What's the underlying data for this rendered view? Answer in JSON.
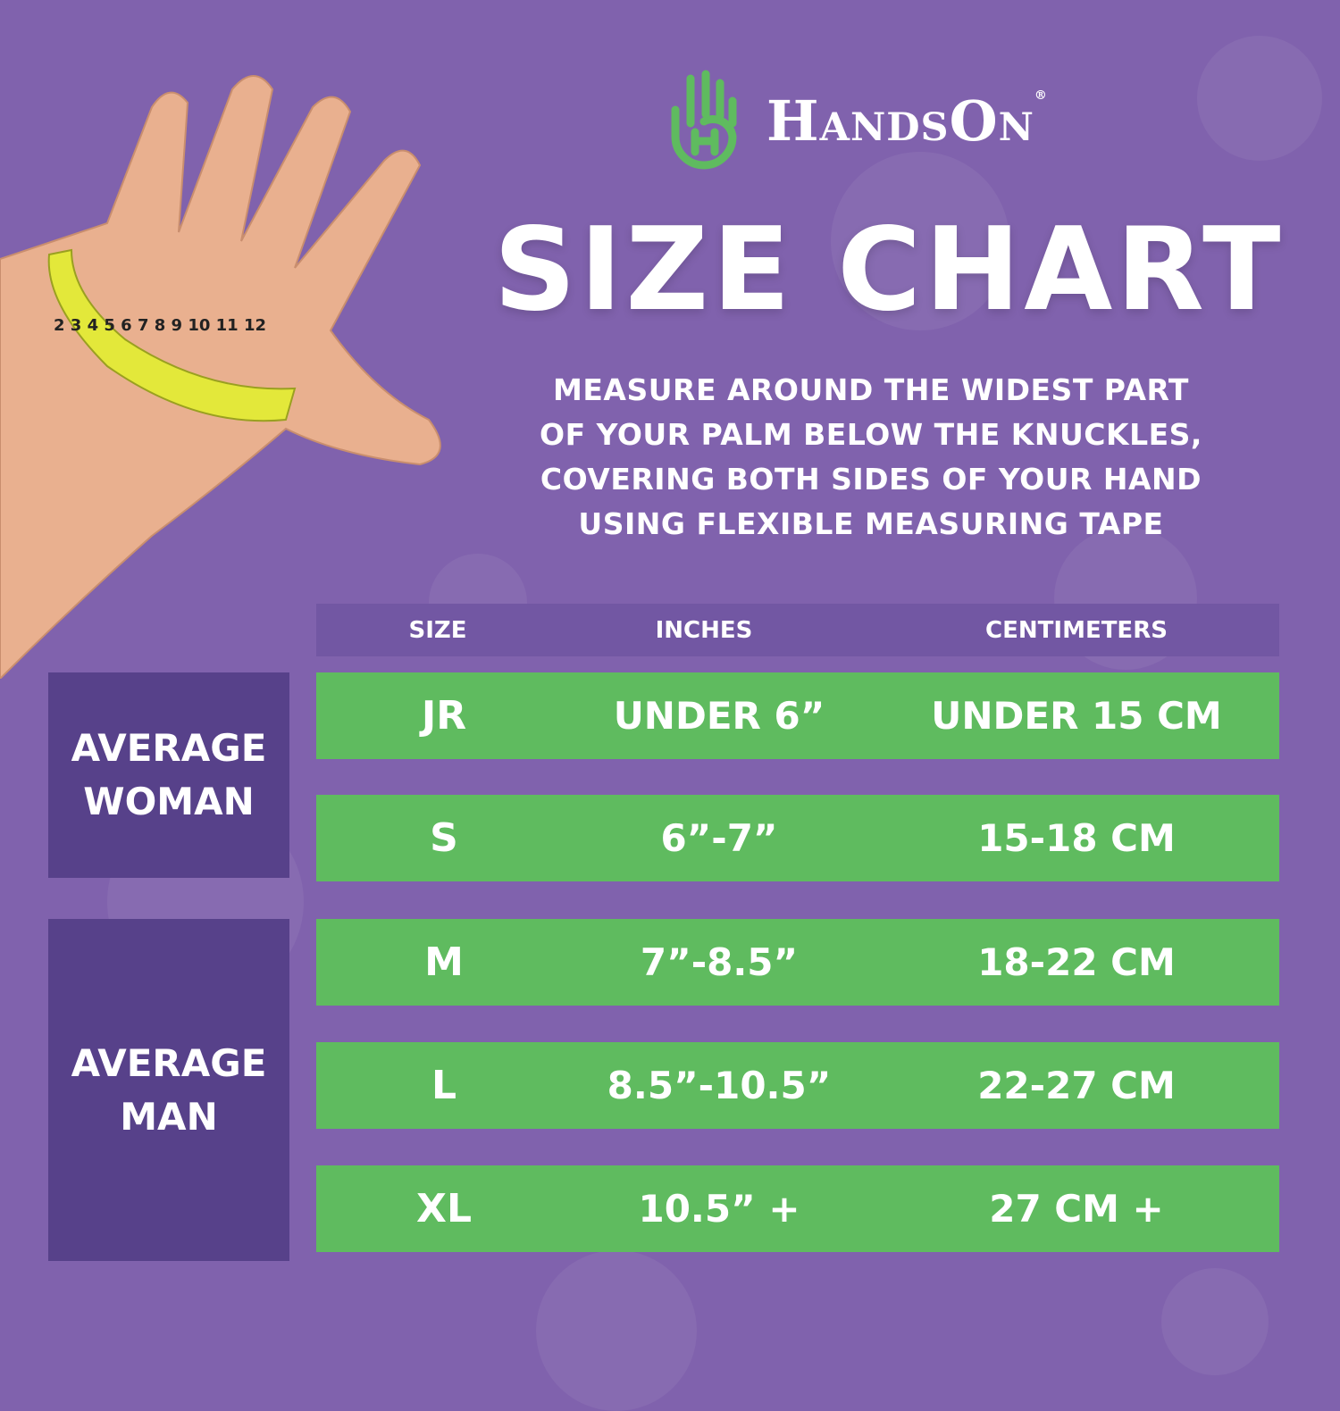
{
  "brand": {
    "name": "HandsOn",
    "registered": "®",
    "logo_color": "#5fbb5f"
  },
  "title": "SIZE CHART",
  "instructions": [
    "MEASURE AROUND THE WIDEST PART",
    "OF YOUR PALM BELOW THE KNUCKLES,",
    "COVERING BOTH SIDES OF YOUR HAND",
    "USING FLEXIBLE MEASURING TAPE"
  ],
  "table": {
    "headers": [
      "SIZE",
      "INCHES",
      "CENTIMETERS"
    ],
    "rows": [
      {
        "size": "JR",
        "inches": "UNDER 6”",
        "cm": "UNDER 15 CM"
      },
      {
        "size": "S",
        "inches": "6”-7”",
        "cm": "15-18 CM"
      },
      {
        "size": "M",
        "inches": "7”-8.5”",
        "cm": "18-22 CM"
      },
      {
        "size": "L",
        "inches": "8.5”-10.5”",
        "cm": "22-27 CM"
      },
      {
        "size": "XL",
        "inches": "10.5” +",
        "cm": "27 CM +"
      }
    ],
    "groups": [
      {
        "line1": "AVERAGE",
        "line2": "WOMAN"
      },
      {
        "line1": "AVERAGE",
        "line2": "MAN"
      }
    ]
  },
  "tape_numbers": [
    "2",
    "3",
    "4",
    "5",
    "6",
    "7",
    "8",
    "9",
    "10",
    "11",
    "12"
  ],
  "colors": {
    "background": "#8062ad",
    "header": "#7257a3",
    "group": "#57418a",
    "row": "#5fbb5f",
    "tape": "#e3e83a"
  }
}
